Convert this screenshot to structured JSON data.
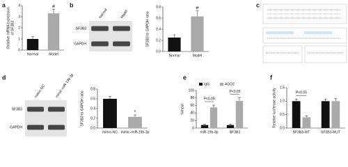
{
  "panel_labels": [
    "a",
    "b",
    "c",
    "d",
    "e",
    "f"
  ],
  "blots": [
    {
      "lanes": [
        "Normal",
        "Model"
      ],
      "rows": [
        "SF3B3",
        "GAPDH"
      ]
    },
    {
      "lanes": [
        "mimic-NC",
        "mimic-miR-19b-3p"
      ],
      "rows": [
        "SF3B3",
        "GAPDH"
      ]
    }
  ],
  "chart_data": [
    {
      "type": "bar",
      "y_label": [
        "Relative mRNA expression",
        "of SF3B3"
      ],
      "categories": [
        "Normal",
        "Model"
      ],
      "values": [
        1.0,
        3.3
      ],
      "errors": [
        0.2,
        0.35
      ],
      "colors": [
        "#111111",
        "#aaaaaa"
      ],
      "ylim": [
        0,
        4
      ],
      "yticks": [
        0,
        1,
        2,
        3,
        4
      ],
      "annotations": [
        "#"
      ]
    },
    {
      "type": "bar",
      "y_label": [
        "SF3B3 to GAPDH ratio"
      ],
      "categories": [
        "Normal",
        "Model"
      ],
      "values": [
        0.25,
        0.63
      ],
      "errors": [
        0.05,
        0.1
      ],
      "colors": [
        "#111111",
        "#aaaaaa"
      ],
      "ylim": [
        0,
        0.8
      ],
      "yticks": [
        {
          "value": 0,
          "label": "0.0"
        },
        0.2,
        0.4,
        0.6,
        0.8
      ],
      "annotations": [
        "#"
      ]
    },
    {
      "type": "bar",
      "y_label": [
        "SF3B3 to GAPDH ratio"
      ],
      "categories": [
        "mimic-NC",
        "mimic-miR-19b-3p"
      ],
      "values": [
        0.6,
        0.23
      ],
      "errors": [
        0.05,
        0.04
      ],
      "colors": [
        "#111111",
        "#aaaaaa"
      ],
      "ylim": [
        0,
        0.8
      ],
      "yticks": [
        {
          "value": 0,
          "label": "0.0"
        },
        0.2,
        0.4,
        0.6,
        0.8
      ],
      "annotations": [
        "*"
      ]
    },
    {
      "type": "grouped-bar",
      "y_label": [
        "%Input"
      ],
      "categories": [
        "miR-19b-3p",
        "SF3B3"
      ],
      "series": [
        {
          "name": "IgG",
          "color": "#111111",
          "values": [
            8,
            8
          ],
          "errors": [
            2,
            2
          ]
        },
        {
          "name": "AGO2",
          "color": "#aaaaaa",
          "values": [
            55,
            72
          ],
          "errors": [
            6,
            8
          ]
        }
      ],
      "ylim": [
        0,
        100
      ],
      "yticks": [
        0,
        20,
        40,
        60,
        80,
        100
      ],
      "legend": "top",
      "annotations": [
        "P<0.05",
        "P<0.05"
      ]
    },
    {
      "type": "grouped-bar",
      "y_label": [
        "Relative luciferase activity"
      ],
      "categories": [
        "SF3B3-WT",
        "SF3B3-MUT"
      ],
      "series": [
        {
          "color": "#111111",
          "values": [
            1.0,
            1.0
          ],
          "errors": [
            0.08,
            0.08
          ]
        },
        {
          "color": "#aaaaaa",
          "values": [
            0.4,
            1.0
          ],
          "errors": [
            0.06,
            0.1
          ]
        }
      ],
      "ylim": [
        0,
        1.5
      ],
      "yticks": [
        {
          "value": 0,
          "label": "0.0"
        },
        {
          "value": 0.5,
          "label": "0.5"
        },
        {
          "value": 1,
          "label": "1.0"
        },
        {
          "value": 1.5,
          "label": "1.5"
        }
      ],
      "annotations": [
        "P<0.05"
      ]
    }
  ]
}
